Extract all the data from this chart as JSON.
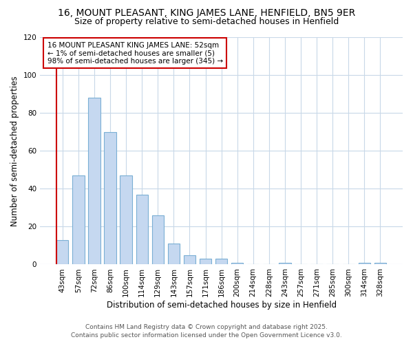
{
  "title_line1": "16, MOUNT PLEASANT, KING JAMES LANE, HENFIELD, BN5 9ER",
  "title_line2": "Size of property relative to semi-detached houses in Henfield",
  "xlabel": "Distribution of semi-detached houses by size in Henfield",
  "ylabel": "Number of semi-detached properties",
  "categories": [
    "43sqm",
    "57sqm",
    "72sqm",
    "86sqm",
    "100sqm",
    "114sqm",
    "129sqm",
    "143sqm",
    "157sqm",
    "171sqm",
    "186sqm",
    "200sqm",
    "214sqm",
    "228sqm",
    "243sqm",
    "257sqm",
    "271sqm",
    "285sqm",
    "300sqm",
    "314sqm",
    "328sqm"
  ],
  "values": [
    13,
    47,
    88,
    70,
    47,
    37,
    26,
    11,
    5,
    3,
    3,
    1,
    0,
    0,
    1,
    0,
    0,
    0,
    0,
    1,
    1
  ],
  "bar_color": "#c5d8f0",
  "bar_edge_color": "#7aafd4",
  "highlight_index": 0,
  "highlight_line_color": "#cc0000",
  "annotation_text": "16 MOUNT PLEASANT KING JAMES LANE: 52sqm\n← 1% of semi-detached houses are smaller (5)\n98% of semi-detached houses are larger (345) →",
  "annotation_box_color": "#ffffff",
  "annotation_box_edge_color": "#cc0000",
  "ylim": [
    0,
    120
  ],
  "yticks": [
    0,
    20,
    40,
    60,
    80,
    100,
    120
  ],
  "background_color": "#ffffff",
  "plot_background_color": "#ffffff",
  "grid_color": "#c8d8e8",
  "footer_line1": "Contains HM Land Registry data © Crown copyright and database right 2025.",
  "footer_line2": "Contains public sector information licensed under the Open Government Licence v3.0.",
  "title_fontsize": 10,
  "subtitle_fontsize": 9,
  "xlabel_fontsize": 8.5,
  "ylabel_fontsize": 8.5,
  "tick_fontsize": 7.5,
  "footer_fontsize": 6.5,
  "annotation_fontsize": 7.5
}
